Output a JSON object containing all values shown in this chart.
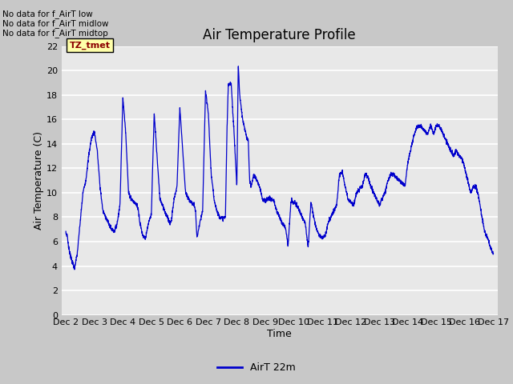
{
  "title": "Air Temperature Profile",
  "xlabel": "Time",
  "ylabel": "Air Temperature (C)",
  "ylim": [
    0,
    22
  ],
  "yticks": [
    0,
    2,
    4,
    6,
    8,
    10,
    12,
    14,
    16,
    18,
    20,
    22
  ],
  "xtick_labels": [
    "Dec 2",
    "Dec 3",
    "Dec 4",
    "Dec 5",
    "Dec 6",
    "Dec 7",
    "Dec 8",
    "Dec 9",
    "Dec 10",
    "Dec 11",
    "Dec 12",
    "Dec 13",
    "Dec 14",
    "Dec 15",
    "Dec 16",
    "Dec 17"
  ],
  "xtick_positions": [
    2,
    3,
    4,
    5,
    6,
    7,
    8,
    9,
    10,
    11,
    12,
    13,
    14,
    15,
    16,
    17
  ],
  "line_color": "#0000cc",
  "fig_facecolor": "#c8c8c8",
  "ax_facecolor": "#e8e8e8",
  "legend_line_label": "AirT 22m",
  "no_data_texts": [
    "No data for f_AirT low",
    "No data for f_AirT midlow",
    "No data for f_AirT midtop"
  ],
  "tz_label": "TZ_tmet",
  "title_fontsize": 12,
  "axis_label_fontsize": 9,
  "tick_fontsize": 8
}
